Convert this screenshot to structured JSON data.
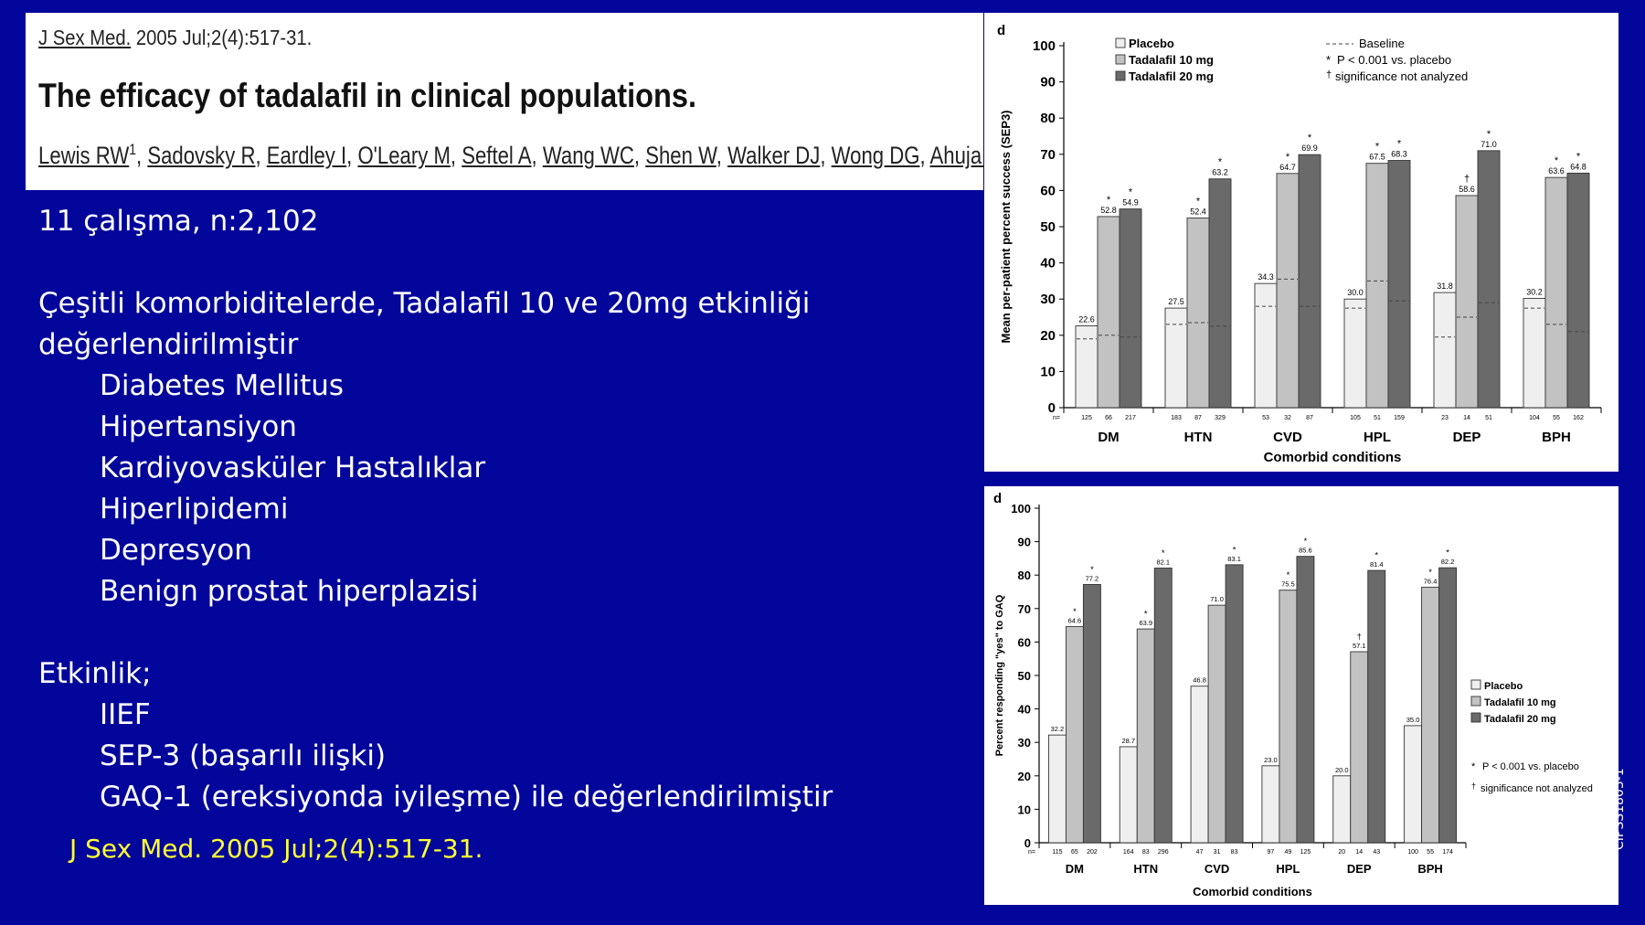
{
  "citation": {
    "journal": "J Sex Med.",
    "detail": "2005 Jul;2(4):517-31.",
    "title": "The efficacy of tadalafil in clinical populations.",
    "authors": [
      "Lewis RW",
      "Sadovsky R",
      "Eardley I",
      "O'Leary M",
      "Seftel A",
      "Wang WC",
      "Shen W",
      "Walker DJ",
      "Wong DG",
      "Ahuja S."
    ],
    "first_author_sup": "1"
  },
  "body": {
    "line1": "11 çalışma, n:2,102",
    "line2": "Çeşitli komorbiditelerde, Tadalafil 10 ve 20mg etkinliği",
    "line3": "değerlendirilmiştir",
    "conditions": [
      "Diabetes Mellitus",
      "Hipertansiyon",
      "Kardiyovasküler Hastalıklar",
      "Hiperlipidemi",
      "Depresyon",
      "Benign prostat hiperplazisi"
    ],
    "efficacy_heading": "Etkinlik;",
    "measures": [
      "IIEF",
      "SEP-3 (başarılı ilişki)",
      "GAQ-1 (ereksiyonda iyileşme) ile değerlendirilmiştir"
    ]
  },
  "footer_reference": "J Sex Med. 2005 Jul;2(4):517-31.",
  "side_code": "CIPSS1803-1",
  "colors": {
    "background": "#03069a",
    "placebo": "#efefef",
    "t10": "#c2c2c2",
    "t20": "#6a6a6a",
    "footer_text": "#ffff33"
  },
  "chart_data": [
    {
      "type": "bar",
      "panel_label": "d",
      "categories": [
        "DM",
        "HTN",
        "CVD",
        "HPL",
        "DEP",
        "BPH"
      ],
      "xlabel": "Comorbid conditions",
      "ylabel": "Mean per-patient percent success (SEP3)",
      "ylim": [
        0,
        100
      ],
      "yticks": [
        0,
        10,
        20,
        30,
        40,
        50,
        60,
        70,
        80,
        90,
        100
      ],
      "series": [
        {
          "name": "Placebo",
          "values": [
            22.6,
            27.5,
            34.3,
            30.0,
            31.8,
            30.2
          ],
          "labels": [
            "22.6",
            "27.5",
            "34.3",
            "30.0",
            "31.8",
            "30.2"
          ],
          "n": [
            "125",
            "183",
            "53",
            "105",
            "23",
            "104"
          ]
        },
        {
          "name": "Tadalafil 10 mg",
          "values": [
            52.8,
            52.4,
            64.7,
            67.5,
            58.6,
            63.6
          ],
          "labels": [
            "52.8",
            "52.4",
            "64.7",
            "67.5",
            "58.6",
            "63.6"
          ],
          "n": [
            "66",
            "87",
            "32",
            "51",
            "14",
            "55"
          ],
          "marks": [
            "*",
            "*",
            "*",
            "*",
            "†",
            "*"
          ]
        },
        {
          "name": "Tadalafil 20 mg",
          "values": [
            54.9,
            63.2,
            69.9,
            68.3,
            71.0,
            64.8
          ],
          "labels": [
            "54.9",
            "63.2",
            "69.9",
            "68.3",
            "71.0",
            "64.8"
          ],
          "n": [
            "217",
            "329",
            "87",
            "159",
            "51",
            "162"
          ],
          "marks": [
            "*",
            "*",
            "*",
            "*",
            "*",
            "*"
          ]
        }
      ],
      "baseline": [
        [
          19,
          20,
          19.5
        ],
        [
          23,
          23.5,
          22.5
        ],
        [
          28,
          35.5,
          28
        ],
        [
          27.5,
          35,
          29.5
        ],
        [
          19.5,
          25,
          29
        ],
        [
          27.5,
          23,
          21
        ]
      ],
      "n_prefix": "n=",
      "legend_right": {
        "baseline": "Baseline",
        "p_value": "P < 0.001 vs. placebo",
        "dagger": "significance not analyzed"
      },
      "legend_position": "top"
    },
    {
      "type": "bar",
      "panel_label": "d",
      "categories": [
        "DM",
        "HTN",
        "CVD",
        "HPL",
        "DEP",
        "BPH"
      ],
      "xlabel": "Comorbid conditions",
      "ylabel": "Percent responding \"yes\" to GAQ",
      "ylim": [
        0,
        100
      ],
      "yticks": [
        0,
        10,
        20,
        30,
        40,
        50,
        60,
        70,
        80,
        90,
        100
      ],
      "series": [
        {
          "name": "Placebo",
          "values": [
            32.2,
            28.7,
            46.8,
            23.0,
            20.0,
            35.0
          ],
          "labels": [
            "32.2",
            "28.7",
            "46.8",
            "23.0",
            "20.0",
            "35.0"
          ],
          "n": [
            "115",
            "164",
            "47",
            "97",
            "20",
            "100"
          ]
        },
        {
          "name": "Tadalafil 10 mg",
          "values": [
            64.6,
            63.9,
            71.0,
            75.5,
            57.1,
            76.4
          ],
          "labels": [
            "64.6",
            "63.9",
            "71.0",
            "75.5",
            "57.1",
            "76.4"
          ],
          "n": [
            "65",
            "83",
            "31",
            "49",
            "14",
            "55"
          ],
          "marks": [
            "*",
            "*",
            "",
            "*",
            "†",
            "*"
          ]
        },
        {
          "name": "Tadalafil 20 mg",
          "values": [
            77.2,
            82.1,
            83.1,
            85.6,
            81.4,
            82.2
          ],
          "labels": [
            "77.2",
            "82.1",
            "83.1",
            "85.6",
            "81.4",
            "82.2"
          ],
          "n": [
            "202",
            "296",
            "83",
            "125",
            "43",
            "174"
          ],
          "marks": [
            "*",
            "*",
            "*",
            "*",
            "*",
            "*"
          ]
        }
      ],
      "n_prefix": "n=",
      "legend_right": {
        "p_value": "P < 0.001 vs. placebo",
        "dagger": "significance not analyzed"
      },
      "legend_position": "right"
    }
  ]
}
